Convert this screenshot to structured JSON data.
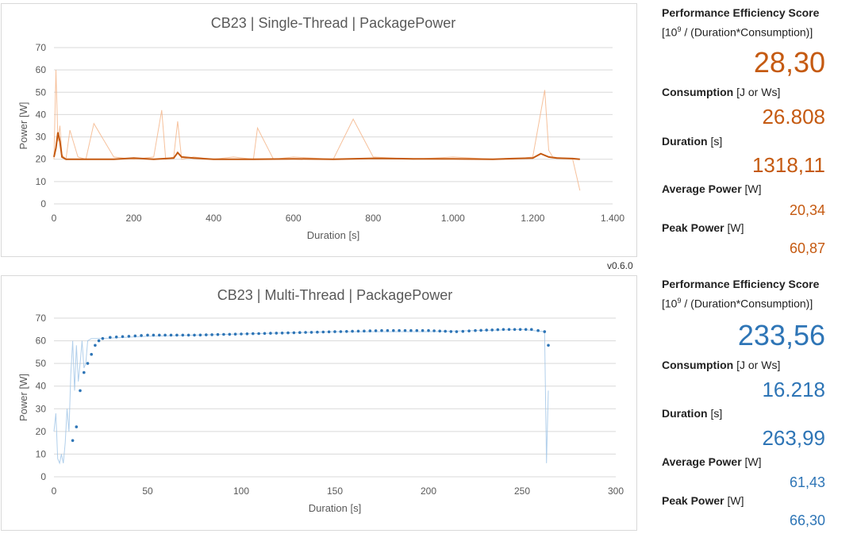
{
  "colors": {
    "single": "#c55a11",
    "single_light": "#f4b183",
    "multi": "#2e75b6",
    "multi_light": "#9dc3e6",
    "grid": "#d9d9d9",
    "axis_text": "#595959"
  },
  "version": "v0.6.0",
  "single": {
    "title": "CB23 | Single-Thread | PackagePower",
    "xlabel": "Duration [s]",
    "ylabel": "Power [W]",
    "xticks": [
      "0",
      "200",
      "400",
      "600",
      "800",
      "1.000",
      "1.200",
      "1.400"
    ],
    "yticks": [
      "0",
      "10",
      "20",
      "30",
      "40",
      "50",
      "60",
      "70"
    ],
    "metrics": {
      "score_label": "Performance Efficiency Score",
      "score_base": "[10",
      "score_exp": "9",
      "score_rest": " / (Duration*Consumption)]",
      "score": "28,30",
      "consumption_label": "Consumption",
      "consumption_unit": " [J or Ws]",
      "consumption": "26.808",
      "duration_label": "Duration",
      "duration_unit": " [s]",
      "duration": "1318,11",
      "avg_label": "Average Power",
      "avg_unit": " [W]",
      "avg": "20,34",
      "peak_label": "Peak Power",
      "peak_unit": " [W]",
      "peak": "60,87"
    }
  },
  "multi": {
    "title": "CB23 | Multi-Thread | PackagePower",
    "xlabel": "Duration [s]",
    "ylabel": "Power [W]",
    "xticks": [
      "0",
      "50",
      "100",
      "150",
      "200",
      "250",
      "300"
    ],
    "yticks": [
      "0",
      "10",
      "20",
      "30",
      "40",
      "50",
      "60",
      "70"
    ],
    "metrics": {
      "score_label": "Performance Efficiency Score",
      "score_base": "[10",
      "score_exp": "9",
      "score_rest": " / (Duration*Consumption)]",
      "score": "233,56",
      "consumption_label": "Consumption",
      "consumption_unit": " [J or Ws]",
      "consumption": "16.218",
      "duration_label": "Duration",
      "duration_unit": " [s]",
      "duration": "263,99",
      "avg_label": "Average Power",
      "avg_unit": " [W]",
      "avg": "61,43",
      "peak_label": "Peak Power",
      "peak_unit": " [W]",
      "peak": "66,30"
    }
  },
  "chart_data": [
    {
      "type": "line",
      "title": "CB23 | Single-Thread | PackagePower",
      "xlabel": "Duration [s]",
      "ylabel": "Power [W]",
      "xlim": [
        0,
        1400
      ],
      "ylim": [
        0,
        70
      ],
      "grid": true,
      "series": [
        {
          "style": "raw",
          "x": [
            0,
            5,
            10,
            15,
            20,
            30,
            40,
            60,
            80,
            100,
            150,
            200,
            250,
            270,
            280,
            300,
            310,
            320,
            350,
            400,
            450,
            500,
            510,
            550,
            600,
            700,
            750,
            800,
            900,
            1000,
            1100,
            1150,
            1200,
            1230,
            1240,
            1250,
            1300,
            1318
          ],
          "y": [
            20,
            60,
            28,
            35,
            22,
            20,
            33,
            21,
            20,
            36,
            21,
            20,
            21,
            42,
            20,
            21,
            37,
            20,
            21,
            20,
            21,
            20,
            34,
            20,
            21,
            20,
            38,
            21,
            20,
            21,
            20,
            20,
            21,
            51,
            24,
            21,
            20,
            6
          ]
        },
        {
          "style": "smoothed",
          "x": [
            0,
            5,
            10,
            15,
            20,
            30,
            50,
            100,
            150,
            200,
            250,
            300,
            310,
            320,
            350,
            400,
            500,
            600,
            700,
            800,
            900,
            1000,
            1100,
            1150,
            1200,
            1220,
            1240,
            1260,
            1300,
            1318
          ],
          "y": [
            21,
            25,
            32,
            28,
            21,
            20,
            20,
            20,
            20,
            20.5,
            20,
            20.5,
            23,
            21,
            20.5,
            20,
            20,
            20.2,
            20,
            20.4,
            20.2,
            20.2,
            20,
            20.3,
            20.5,
            22.5,
            21,
            20.5,
            20.3,
            20
          ]
        }
      ]
    },
    {
      "type": "line",
      "title": "CB23 | Multi-Thread | PackagePower",
      "xlabel": "Duration [s]",
      "ylabel": "Power [W]",
      "xlim": [
        0,
        300
      ],
      "ylim": [
        0,
        70
      ],
      "grid": true,
      "series": [
        {
          "style": "raw",
          "x": [
            0,
            1,
            2,
            3,
            4,
            5,
            6,
            7,
            8,
            9,
            10,
            11,
            12,
            13,
            14,
            15,
            16,
            17,
            18,
            20,
            25,
            50,
            100,
            150,
            200,
            250,
            262,
            263,
            264
          ],
          "y": [
            20,
            28,
            8,
            6,
            10,
            6,
            15,
            30,
            20,
            45,
            60,
            38,
            58,
            42,
            50,
            60,
            48,
            50,
            60,
            61,
            61,
            62,
            63,
            64,
            64,
            65,
            64,
            6,
            38
          ]
        },
        {
          "style": "smoothed",
          "x": [
            10,
            12,
            14,
            16,
            18,
            20,
            22,
            24,
            26,
            30,
            40,
            50,
            75,
            100,
            125,
            150,
            175,
            200,
            215,
            225,
            240,
            255,
            262,
            264
          ],
          "y": [
            16,
            22,
            38,
            46,
            50,
            54,
            58,
            60,
            61,
            61.5,
            62,
            62.5,
            62.5,
            63,
            63.5,
            64,
            64.5,
            64.5,
            64,
            64.5,
            65,
            65,
            64,
            58
          ]
        }
      ]
    }
  ]
}
